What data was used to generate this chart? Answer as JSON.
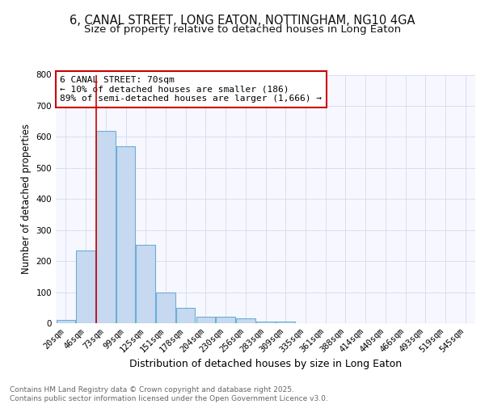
{
  "title1": "6, CANAL STREET, LONG EATON, NOTTINGHAM, NG10 4GA",
  "title2": "Size of property relative to detached houses in Long Eaton",
  "xlabel": "Distribution of detached houses by size in Long Eaton",
  "ylabel": "Number of detached properties",
  "categories": [
    "20sqm",
    "46sqm",
    "73sqm",
    "99sqm",
    "125sqm",
    "151sqm",
    "178sqm",
    "204sqm",
    "230sqm",
    "256sqm",
    "283sqm",
    "309sqm",
    "335sqm",
    "361sqm",
    "388sqm",
    "414sqm",
    "440sqm",
    "466sqm",
    "493sqm",
    "519sqm",
    "545sqm"
  ],
  "values": [
    10,
    235,
    620,
    570,
    252,
    100,
    50,
    22,
    22,
    15,
    5,
    4,
    0,
    0,
    0,
    0,
    0,
    0,
    0,
    0,
    0
  ],
  "bar_color": "#c6d9f0",
  "bar_edge_color": "#6baed6",
  "vline_index": 2,
  "vline_color": "#cc0000",
  "annotation_text": "6 CANAL STREET: 70sqm\n← 10% of detached houses are smaller (186)\n89% of semi-detached houses are larger (1,666) →",
  "annotation_box_facecolor": "#ffffff",
  "annotation_box_edgecolor": "#cc0000",
  "ylim": [
    0,
    800
  ],
  "yticks": [
    0,
    100,
    200,
    300,
    400,
    500,
    600,
    700,
    800
  ],
  "bg_color": "#f7f8ff",
  "grid_color": "#d8ddf0",
  "title1_fontsize": 10.5,
  "title2_fontsize": 9.5,
  "xlabel_fontsize": 9,
  "ylabel_fontsize": 8.5,
  "tick_fontsize": 7.5,
  "annotation_fontsize": 8,
  "footer_fontsize": 6.5,
  "footer_text": "Contains HM Land Registry data © Crown copyright and database right 2025.\nContains public sector information licensed under the Open Government Licence v3.0."
}
